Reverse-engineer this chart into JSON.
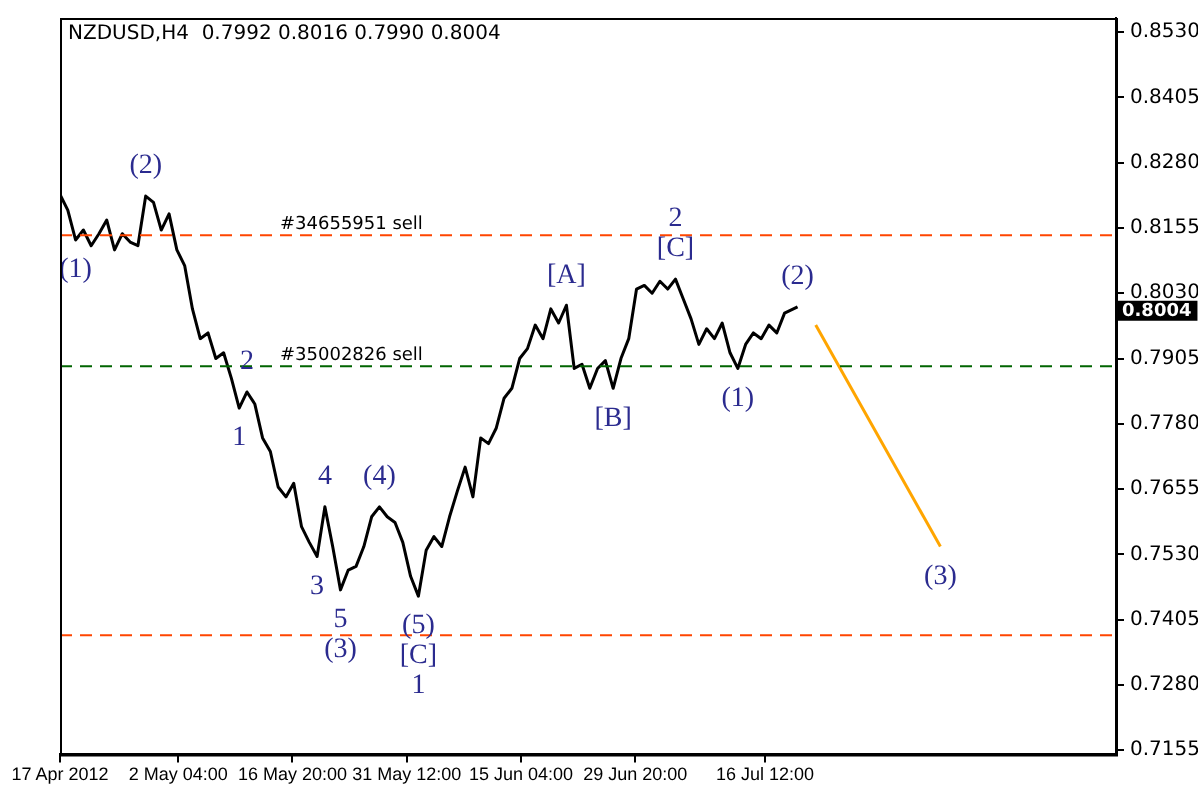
{
  "chart_data": {
    "type": "line",
    "title": "NZDUSD,H4  0.7992 0.8016 0.7990 0.8004",
    "xlim": [
      "2012-04-17",
      "2012-08-30T13:00"
    ],
    "xticks": [
      {
        "value": "2012-04-17",
        "label": "17 Apr 2012"
      },
      {
        "value": "2012-05-02T04:00",
        "label": "2 May 04:00"
      },
      {
        "value": "2012-05-16T20:00",
        "label": "16 May 20:00"
      },
      {
        "value": "2012-05-31T12:00",
        "label": "31 May 12:00"
      },
      {
        "value": "2012-06-15T04:00",
        "label": "15 Jun 04:00"
      },
      {
        "value": "2012-06-29T20:00",
        "label": "29 Jun 20:00"
      },
      {
        "value": "2012-07-16T12:00",
        "label": "16 Jul 12:00"
      }
    ],
    "ylim": [
      0.7147,
      0.8557
    ],
    "yticks": [
      0.7155,
      {
        "value": 0.728,
        "label": "0.7280"
      },
      0.7405,
      {
        "value": 0.753,
        "label": "0.7530"
      },
      0.7655,
      {
        "value": 0.778,
        "label": "0.7780"
      },
      0.7905,
      {
        "value": 0.803,
        "label": "0.8030"
      },
      0.8155,
      {
        "value": 0.828,
        "label": "0.8280"
      },
      0.8405,
      {
        "value": 0.853,
        "label": "0.8530"
      }
    ],
    "grid": false,
    "legend": false,
    "marker": "none",
    "line_style": "solid",
    "series": [
      {
        "color": "#000000",
        "x": [
          "2012-04-17",
          "2012-04-18",
          "2012-04-19",
          "2012-04-20",
          "2012-04-21",
          "2012-04-22",
          "2012-04-23",
          "2012-04-24",
          "2012-04-25",
          "2012-04-26",
          "2012-04-27",
          "2012-04-28",
          "2012-04-29",
          "2012-04-30",
          "2012-05-01",
          "2012-05-02",
          "2012-05-03",
          "2012-05-04",
          "2012-05-05",
          "2012-05-06",
          "2012-05-07",
          "2012-05-08",
          "2012-05-09",
          "2012-05-10",
          "2012-05-11",
          "2012-05-12",
          "2012-05-13",
          "2012-05-14",
          "2012-05-15",
          "2012-05-16",
          "2012-05-17",
          "2012-05-18",
          "2012-05-19",
          "2012-05-20",
          "2012-05-21",
          "2012-05-22",
          "2012-05-23",
          "2012-05-24",
          "2012-05-25",
          "2012-05-26",
          "2012-05-27",
          "2012-05-28",
          "2012-05-29",
          "2012-05-30",
          "2012-05-31",
          "2012-06-01",
          "2012-06-02",
          "2012-06-03",
          "2012-06-04",
          "2012-06-05",
          "2012-06-06",
          "2012-06-07",
          "2012-06-08",
          "2012-06-09",
          "2012-06-10",
          "2012-06-11",
          "2012-06-12",
          "2012-06-13",
          "2012-06-14",
          "2012-06-15",
          "2012-06-16",
          "2012-06-17",
          "2012-06-18",
          "2012-06-19",
          "2012-06-20",
          "2012-06-21",
          "2012-06-22",
          "2012-06-23",
          "2012-06-24",
          "2012-06-25",
          "2012-06-26",
          "2012-06-27",
          "2012-06-28",
          "2012-06-29",
          "2012-06-30",
          "2012-07-01",
          "2012-07-02",
          "2012-07-03",
          "2012-07-04",
          "2012-07-05",
          "2012-07-06",
          "2012-07-07",
          "2012-07-08",
          "2012-07-09",
          "2012-07-10",
          "2012-07-11",
          "2012-07-12",
          "2012-07-13",
          "2012-07-14",
          "2012-07-15",
          "2012-07-16",
          "2012-07-17",
          "2012-07-18",
          "2012-07-19",
          "2012-07-20T16:00"
        ],
        "values": [
          0.8219,
          0.8189,
          0.8132,
          0.8151,
          0.8121,
          0.8144,
          0.817,
          0.8113,
          0.8144,
          0.8128,
          0.8121,
          0.8216,
          0.8204,
          0.8151,
          0.8182,
          0.8113,
          0.8083,
          0.8,
          0.7943,
          0.7954,
          0.7905,
          0.7916,
          0.7867,
          0.781,
          0.7841,
          0.7818,
          0.7753,
          0.7727,
          0.7659,
          0.764,
          0.7666,
          0.7583,
          0.7553,
          0.7526,
          0.7621,
          0.7545,
          0.7462,
          0.75,
          0.7507,
          0.7545,
          0.7602,
          0.7621,
          0.7602,
          0.7591,
          0.7553,
          0.7488,
          0.745,
          0.7538,
          0.7564,
          0.7545,
          0.7602,
          0.7651,
          0.7697,
          0.764,
          0.7753,
          0.7742,
          0.7772,
          0.7829,
          0.7848,
          0.7905,
          0.7924,
          0.7969,
          0.7943,
          0.8,
          0.7973,
          0.8007,
          0.7886,
          0.7894,
          0.7848,
          0.7886,
          0.7901,
          0.7848,
          0.7905,
          0.7943,
          0.8038,
          0.8045,
          0.803,
          0.8053,
          0.8038,
          0.8057,
          0.8019,
          0.7981,
          0.7932,
          0.7962,
          0.7943,
          0.7973,
          0.7916,
          0.7886,
          0.7932,
          0.7954,
          0.7943,
          0.7969,
          0.7954,
          0.7992,
          0.8004
        ]
      },
      {
        "color": "#ffa500",
        "x": [
          "2012-07-23",
          "2012-08-08"
        ],
        "values": [
          0.7969,
          0.7545
        ]
      }
    ],
    "ref_lines": [
      {
        "axis": "y",
        "value": 0.8141,
        "label": "#34655951 sell",
        "color": "#ff4500",
        "line_style": "dashed"
      },
      {
        "axis": "y",
        "value": 0.789,
        "label": "#35002826 sell",
        "color": "#006400",
        "line_style": "dashed"
      },
      {
        "axis": "y",
        "value": 0.7375,
        "color": "#ff4500",
        "line_style": "dashed"
      }
    ],
    "annotations": [
      {
        "text": "(1)",
        "x": "2012-04-19",
        "y": 0.8132
      },
      {
        "text": "(2)",
        "x": "2012-04-28",
        "y": 0.8216
      },
      {
        "text": "2",
        "x": "2012-05-11",
        "y": 0.7841
      },
      {
        "text": "1",
        "x": "2012-05-10",
        "y": 0.781
      },
      {
        "text": "4",
        "x": "2012-05-21",
        "y": 0.7621
      },
      {
        "text": "3",
        "x": "2012-05-20",
        "y": 0.7526
      },
      {
        "text": "5",
        "x": "2012-05-23",
        "y": 0.7462
      },
      {
        "text": "(3)",
        "x": "2012-05-23",
        "y": 0.7462
      },
      {
        "text": "(4)",
        "x": "2012-05-28",
        "y": 0.7621
      },
      {
        "text": "(5)",
        "x": "2012-06-02",
        "y": 0.745
      },
      {
        "text": "[C]",
        "x": "2012-06-02",
        "y": 0.745
      },
      {
        "text": "1",
        "x": "2012-06-02",
        "y": 0.745
      },
      {
        "text": "[A]",
        "x": "2012-06-21",
        "y": 0.8007
      },
      {
        "text": "[B]",
        "x": "2012-06-27",
        "y": 0.7848
      },
      {
        "text": "[C]",
        "x": "2012-07-05",
        "y": 0.8057
      },
      {
        "text": "2",
        "x": "2012-07-05",
        "y": 0.8057
      },
      {
        "text": "(1)",
        "x": "2012-07-13",
        "y": 0.7886
      },
      {
        "text": "(2)",
        "x": "2012-07-20T16:00",
        "y": 0.8004
      },
      {
        "text": "(3)",
        "x": "2012-08-08",
        "y": 0.7545
      },
      "0.8004"
    ]
  }
}
